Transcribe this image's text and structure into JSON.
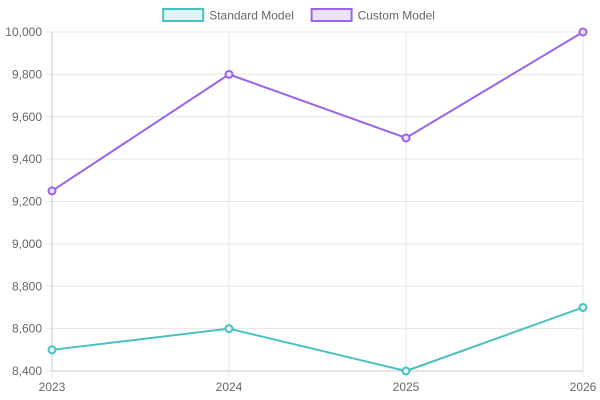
{
  "chart_data": {
    "type": "line",
    "categories": [
      "2023",
      "2024",
      "2025",
      "2026"
    ],
    "series": [
      {
        "name": "Standard Model",
        "values": [
          8500,
          8600,
          8400,
          8700
        ],
        "color": "#4bc0c0",
        "fill": "#dff5f5"
      },
      {
        "name": "Custom Model",
        "values": [
          9250,
          9800,
          9500,
          10000
        ],
        "color": "#9966e8",
        "fill": "#ece1fb"
      }
    ],
    "title": "",
    "xlabel": "",
    "ylabel": "",
    "ylim": [
      8400,
      10000
    ],
    "yticks": [
      {
        "value": 8400,
        "label": "8,400"
      },
      {
        "value": 8600,
        "label": "8,600"
      },
      {
        "value": 8800,
        "label": "8,800"
      },
      {
        "value": 9000,
        "label": "9,000"
      },
      {
        "value": 9200,
        "label": "9,200"
      },
      {
        "value": 9400,
        "label": "9,400"
      },
      {
        "value": 9600,
        "label": "9,600"
      },
      {
        "value": 9800,
        "label": "9,800"
      },
      {
        "value": 10000,
        "label": "10,000"
      }
    ],
    "grid": true,
    "legend": "top-center"
  }
}
